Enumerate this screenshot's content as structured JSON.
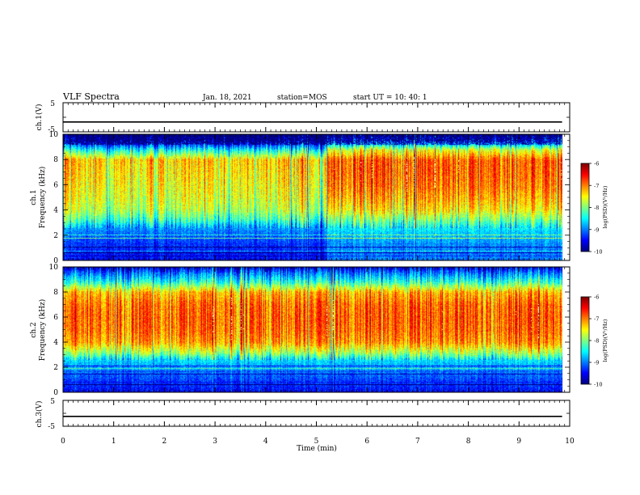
{
  "header": {
    "title": "VLF Spectra",
    "date": "Jan. 18, 2021",
    "station": "station=MOS",
    "start": "start  UT =   10: 40: 1"
  },
  "chart_data": [
    {
      "type": "line",
      "panel": "ch1-voltage",
      "ylabel": "ch.1(V)",
      "ylim": [
        -5,
        5
      ],
      "ytick_labels": [
        "5",
        "-5"
      ],
      "xlim": [
        0,
        10
      ],
      "series": [
        {
          "x": [
            0,
            9.85
          ],
          "values": [
            -1.6,
            -1.6
          ]
        }
      ]
    },
    {
      "type": "heatmap",
      "panel": "ch1-spectrogram",
      "ylabel": "ch.1\nFrequency (kHz)",
      "ylim": [
        0,
        10
      ],
      "ytick_labels": [
        "0",
        "2",
        "4",
        "6",
        "8",
        "10"
      ],
      "xlim": [
        0,
        10
      ],
      "data_end": 9.85,
      "colorbar": {
        "label": "log(PSD)(V²/Hz)",
        "range": [
          -10,
          -6
        ],
        "tick_labels": [
          "-6",
          "-7",
          "-8",
          "-9",
          "-10"
        ]
      },
      "profile": {
        "description": "approx. log(PSD) per frequency band",
        "freq_kHz": [
          0,
          0.8,
          1.8,
          2.6,
          3.2,
          4.0,
          5.0,
          6.0,
          7.0,
          8.0,
          8.8,
          9.5,
          10
        ],
        "before_5p2_min": [
          -9.5,
          -9.4,
          -9.2,
          -8.9,
          -8.3,
          -7.8,
          -7.6,
          -7.5,
          -7.4,
          -7.3,
          -8.5,
          -9.8,
          -10
        ],
        "after_5p2_min": [
          -9.0,
          -9.0,
          -8.8,
          -8.5,
          -8.0,
          -7.4,
          -7.1,
          -6.9,
          -6.8,
          -6.8,
          -7.6,
          -9.3,
          -9.8
        ]
      }
    },
    {
      "type": "heatmap",
      "panel": "ch2-spectrogram",
      "ylabel": "ch.2\nFrequency (kHz)",
      "ylim": [
        0,
        10
      ],
      "ytick_labels": [
        "0",
        "2",
        "4",
        "6",
        "8",
        "10"
      ],
      "xlim": [
        0,
        10
      ],
      "data_end": 9.85,
      "colorbar": {
        "label": "log(PSD)(V²/Hz)",
        "range": [
          -10,
          -6
        ],
        "tick_labels": [
          "-6",
          "-7",
          "-8",
          "-9",
          "-10"
        ]
      },
      "profile": {
        "description": "approx. log(PSD) per frequency band",
        "freq_kHz": [
          0,
          0.8,
          1.8,
          2.6,
          3.2,
          4.0,
          5.0,
          6.0,
          7.0,
          8.0,
          8.8,
          9.5,
          10
        ],
        "before_5p2_min": [
          -9.5,
          -9.3,
          -9.0,
          -8.6,
          -7.8,
          -7.1,
          -6.9,
          -6.85,
          -6.9,
          -7.2,
          -8.3,
          -9.0,
          -9.6
        ],
        "after_5p2_min": [
          -9.5,
          -9.3,
          -9.0,
          -8.6,
          -7.8,
          -7.1,
          -6.9,
          -6.85,
          -6.9,
          -7.2,
          -8.3,
          -9.0,
          -9.6
        ]
      }
    },
    {
      "type": "line",
      "panel": "ch3-voltage",
      "ylabel": "ch.3(V)",
      "ylim": [
        -5,
        5
      ],
      "ytick_labels": [
        "5",
        "-5"
      ],
      "xlim": [
        0,
        10
      ],
      "series": [
        {
          "x": [
            0,
            9.85
          ],
          "values": [
            -1.2,
            -1.2
          ]
        }
      ]
    }
  ],
  "xaxis": {
    "label": "Time  (min)",
    "tick_labels": [
      "0",
      "1",
      "2",
      "3",
      "4",
      "5",
      "6",
      "7",
      "8",
      "9",
      "10"
    ]
  }
}
